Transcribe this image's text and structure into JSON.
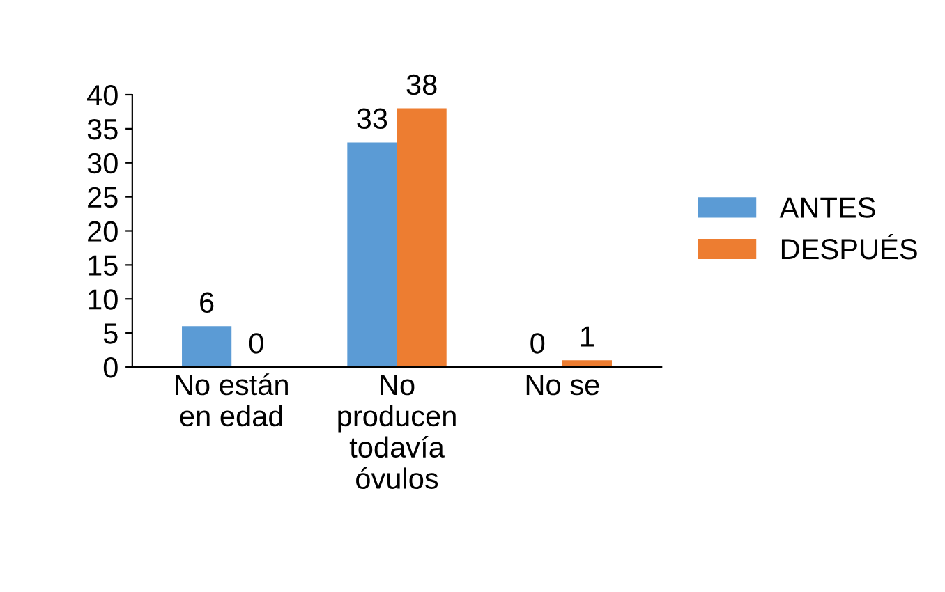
{
  "chart_data": {
    "type": "bar",
    "categories": [
      "No están\nen edad",
      "No\nproducen\ntodavía\nóvulos",
      "No se"
    ],
    "series": [
      {
        "name": "ANTES",
        "color": "#5b9bd5",
        "values": [
          6,
          33,
          0
        ]
      },
      {
        "name": "DESPUÉS",
        "color": "#ed7d31",
        "values": [
          0,
          38,
          1
        ]
      }
    ],
    "ylim": [
      0,
      40
    ],
    "yticks": [
      0,
      5,
      10,
      15,
      20,
      25,
      30,
      35,
      40
    ],
    "data_labels": true,
    "legend": "right",
    "grid": false
  }
}
